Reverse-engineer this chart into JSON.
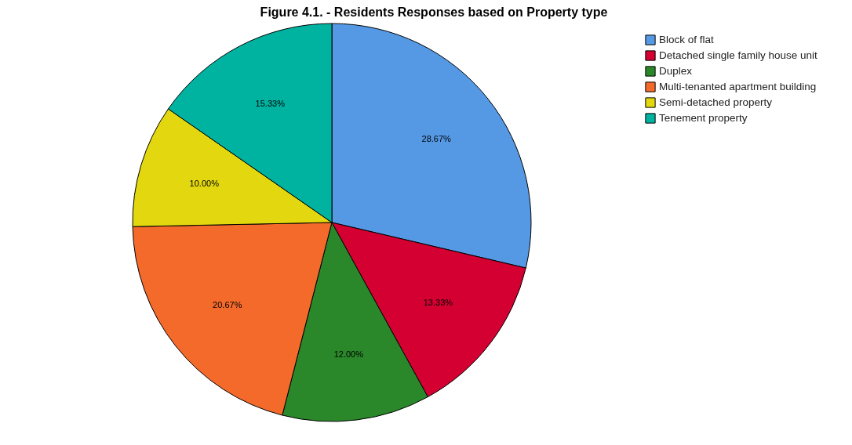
{
  "chart_data": {
    "type": "pie",
    "title": "Figure 4.1. - Residents Responses based on Property type",
    "categories": [
      "Block of flat",
      "Detached single family house unit",
      "Duplex",
      "Multi-tenanted apartment building",
      "Semi-detached property",
      "Tenement property"
    ],
    "values": [
      28.67,
      13.33,
      12.0,
      20.67,
      10.0,
      15.33
    ],
    "value_labels": [
      "28.67%",
      "13.33%",
      "12.00%",
      "20.67%",
      "10.00%",
      "15.33%"
    ],
    "colors": [
      "#5599e5",
      "#d40032",
      "#2a882a",
      "#f46a2b",
      "#e3d80f",
      "#00b2a0"
    ],
    "legend": "top right"
  }
}
